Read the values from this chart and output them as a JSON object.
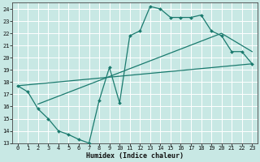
{
  "bg_color": "#c8e8e4",
  "line_color": "#1a7a6e",
  "grid_color": "#ffffff",
  "xlabel": "Humidex (Indice chaleur)",
  "ylim": [
    13,
    24.5
  ],
  "xlim": [
    -0.5,
    23.5
  ],
  "yticks": [
    13,
    14,
    15,
    16,
    17,
    18,
    19,
    20,
    21,
    22,
    23,
    24
  ],
  "xticks": [
    0,
    1,
    2,
    3,
    4,
    5,
    6,
    7,
    8,
    9,
    10,
    11,
    12,
    13,
    14,
    15,
    16,
    17,
    18,
    19,
    20,
    21,
    22,
    23
  ],
  "line1_x": [
    0,
    1,
    2,
    3,
    4,
    5,
    6,
    7,
    8,
    9,
    10,
    11,
    12,
    13,
    14,
    15,
    16,
    17,
    18,
    19,
    20,
    21,
    22,
    23
  ],
  "line1_y": [
    17.7,
    17.2,
    15.8,
    15.0,
    14.0,
    13.7,
    13.3,
    13.0,
    16.5,
    19.2,
    16.3,
    21.8,
    22.2,
    24.2,
    24.0,
    23.3,
    23.3,
    23.3,
    23.5,
    22.2,
    21.8,
    20.5,
    20.5,
    19.5
  ],
  "line2_x": [
    0,
    23
  ],
  "line2_y": [
    17.7,
    19.5
  ],
  "line3_x": [
    2,
    20,
    23
  ],
  "line3_y": [
    16.2,
    22.0,
    20.5
  ],
  "marker_x": [
    0,
    1,
    2,
    3,
    4,
    5,
    6,
    7,
    8,
    9,
    10,
    11,
    12,
    13,
    14,
    15,
    16,
    17,
    18,
    19,
    20,
    21,
    22,
    23
  ],
  "marker_y": [
    17.7,
    17.2,
    15.8,
    15.0,
    14.0,
    13.7,
    13.3,
    13.0,
    16.5,
    19.2,
    16.3,
    21.8,
    22.2,
    24.2,
    24.0,
    23.3,
    23.3,
    23.3,
    23.5,
    22.2,
    21.8,
    20.5,
    20.5,
    19.5
  ]
}
